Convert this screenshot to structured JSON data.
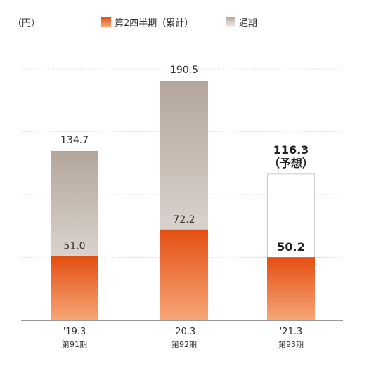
{
  "chart_data": {
    "type": "bar",
    "unit_label": "（円）",
    "legend": [
      {
        "label": "第2四半期（累計）",
        "key": "q2"
      },
      {
        "label": "通期",
        "key": "full"
      }
    ],
    "categories": [
      {
        "period": "'19.3",
        "term": "第91期"
      },
      {
        "period": "'20.3",
        "term": "第92期"
      },
      {
        "period": "'21.3",
        "term": "第93期"
      }
    ],
    "series": [
      {
        "name": "第2四半期（累計）",
        "values": [
          51.0,
          72.2,
          50.2
        ]
      },
      {
        "name": "通期",
        "values": [
          134.7,
          190.5,
          116.3
        ]
      }
    ],
    "value_labels": {
      "q2": [
        "51.0",
        "72.2",
        "50.2"
      ],
      "full": [
        "134.7",
        "190.5",
        "116.3"
      ]
    },
    "forecast_note": "（予想）",
    "forecast_index": 2,
    "ylim": [
      0,
      240
    ],
    "grid": "dotted horizontal",
    "legend_position": "top",
    "colors": {
      "q2_top": "#e44e12",
      "q2_bottom": "#f6a677",
      "full_top": "#b3a69c",
      "full_bottom": "#f1ede9",
      "forecast_border": "#cccccc",
      "axis": "#999999",
      "grid": "#dddddd"
    }
  }
}
